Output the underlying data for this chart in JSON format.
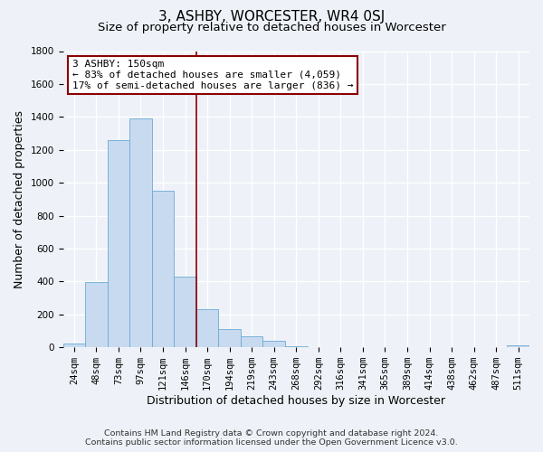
{
  "title": "3, ASHBY, WORCESTER, WR4 0SJ",
  "subtitle": "Size of property relative to detached houses in Worcester",
  "xlabel": "Distribution of detached houses by size in Worcester",
  "ylabel": "Number of detached properties",
  "categories": [
    "24sqm",
    "48sqm",
    "73sqm",
    "97sqm",
    "121sqm",
    "146sqm",
    "170sqm",
    "194sqm",
    "219sqm",
    "243sqm",
    "268sqm",
    "292sqm",
    "316sqm",
    "341sqm",
    "365sqm",
    "389sqm",
    "414sqm",
    "438sqm",
    "462sqm",
    "487sqm",
    "511sqm"
  ],
  "values": [
    25,
    395,
    1260,
    1390,
    950,
    430,
    230,
    110,
    65,
    40,
    5,
    2,
    1,
    0,
    0,
    0,
    0,
    0,
    0,
    0,
    10
  ],
  "bar_color": "#c8daef",
  "bar_edge_color": "#6aaad4",
  "vline_x": 5.5,
  "vline_color": "#8b0000",
  "box_text_line1": "3 ASHBY: 150sqm",
  "box_text_line2": "← 83% of detached houses are smaller (4,059)",
  "box_text_line3": "17% of semi-detached houses are larger (836) →",
  "box_color": "white",
  "box_edge_color": "#8b0000",
  "ylim": [
    0,
    1800
  ],
  "yticks": [
    0,
    200,
    400,
    600,
    800,
    1000,
    1200,
    1400,
    1600,
    1800
  ],
  "footnote1": "Contains HM Land Registry data © Crown copyright and database right 2024.",
  "footnote2": "Contains public sector information licensed under the Open Government Licence v3.0.",
  "title_fontsize": 11,
  "subtitle_fontsize": 9.5,
  "label_fontsize": 9,
  "tick_fontsize": 7.5,
  "footnote_fontsize": 6.8,
  "bg_color": "#eef2f8",
  "grid_color": "#ffffff"
}
